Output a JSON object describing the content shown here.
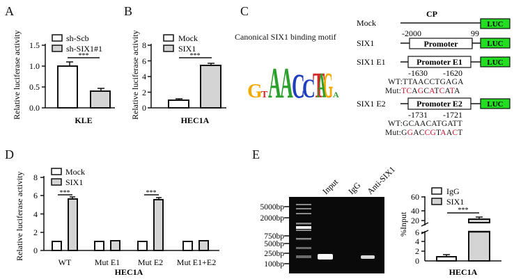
{
  "panels": {
    "A": {
      "letter": "A"
    },
    "B": {
      "letter": "B"
    },
    "C": {
      "letter": "C"
    },
    "D": {
      "letter": "D"
    },
    "E": {
      "letter": "E"
    }
  },
  "colors": {
    "control_fill": "#ffffff",
    "treated_fill": "#d4d4d4",
    "bar_stroke": "#111111",
    "luc_green": "#22dd22",
    "mut_red": "#c8102e",
    "gel_bg": "#0a0a0a"
  },
  "chart_data": [
    {
      "panel": "A",
      "type": "bar",
      "categories": [
        "KLE"
      ],
      "series": [
        {
          "name": "sh-Scb",
          "values": [
            1.0
          ],
          "error": [
            0.1
          ]
        },
        {
          "name": "sh-SIX1#1",
          "values": [
            0.4
          ],
          "error": [
            0.04
          ]
        }
      ],
      "xlabel": "KLE",
      "ylabel": "Relative luciferase activity",
      "ylim": [
        0,
        1.5
      ],
      "yticks": [
        "0.0",
        "0.5",
        "1.0",
        "1.5"
      ],
      "significance": "***",
      "legend": [
        "sh-Scb",
        "sh-SIX1#1"
      ]
    },
    {
      "panel": "B",
      "type": "bar",
      "categories": [
        "HEC1A"
      ],
      "series": [
        {
          "name": "Mock",
          "values": [
            1.0
          ],
          "error": [
            0.1
          ]
        },
        {
          "name": "SIX1",
          "values": [
            5.4
          ],
          "error": [
            0.2
          ]
        }
      ],
      "xlabel": "HEC1A",
      "ylabel": "Relative luciferase activity",
      "ylim": [
        0,
        8
      ],
      "yticks": [
        "0",
        "2",
        "4",
        "6",
        "8"
      ],
      "significance": "***",
      "legend": [
        "Mock",
        "SIX1"
      ]
    },
    {
      "panel": "D",
      "type": "bar",
      "categories": [
        "WT",
        "Mut E1",
        "Mut E2",
        "Mut E1+E2"
      ],
      "series": [
        {
          "name": "Mock",
          "values": [
            1.0,
            1.0,
            1.0,
            1.0
          ],
          "error": [
            0.05,
            0.05,
            0.08,
            0.05
          ]
        },
        {
          "name": "SIX1",
          "values": [
            5.6,
            1.1,
            5.5,
            1.1
          ],
          "error": [
            0.15,
            0.08,
            0.15,
            0.08
          ]
        }
      ],
      "xlabel": "HEC1A",
      "ylabel": "Relative luciferase activity",
      "ylim": [
        0,
        8
      ],
      "yticks": [
        "0",
        "2",
        "4",
        "6",
        "8"
      ],
      "significance": [
        "***",
        "",
        "***",
        ""
      ],
      "legend": [
        "Mock",
        "SIX1"
      ]
    },
    {
      "panel": "E-right",
      "type": "bar",
      "categories": [
        "HEC1A"
      ],
      "series": [
        {
          "name": "IgG",
          "values": [
            1.0
          ],
          "error": [
            0.1
          ]
        },
        {
          "name": "SIX1",
          "values": [
            22
          ],
          "error": [
            2
          ]
        }
      ],
      "xlabel": "HEC1A",
      "ylabel": "%Input",
      "ylim": [
        0,
        60
      ],
      "broken_axis": {
        "lower": [
          0,
          6
        ],
        "upper": [
          20,
          60
        ]
      },
      "yticks": [
        "0",
        "2",
        "4",
        "6",
        "20",
        "40",
        "60"
      ],
      "significance": "***",
      "legend": [
        "IgG",
        "SIX1"
      ]
    }
  ],
  "panelA": {
    "ylabel": "Relative luciferase activity",
    "xlabel": "KLE",
    "legend": [
      "sh-Scb",
      "sh-SIX1#1"
    ],
    "yticks": [
      "0.0",
      "0.5",
      "1.0",
      "1.5"
    ],
    "sig": "***"
  },
  "panelB": {
    "ylabel": "Relative luciferase activity",
    "xlabel": "HEC1A",
    "legend": [
      "Mock",
      "SIX1"
    ],
    "yticks": [
      "0",
      "2",
      "4",
      "6",
      "8"
    ],
    "sig": "***"
  },
  "panelC": {
    "motif_title": "Canonical SIX1 binding motif",
    "motif_letters": [
      "G",
      "T",
      "A",
      "A",
      "C",
      "C",
      "T",
      "G",
      "A",
      "A"
    ],
    "cp_label": "CP",
    "rows": [
      {
        "label": "Mock",
        "box": "",
        "luc": "LUC"
      },
      {
        "label": "SIX1",
        "box": "Promoter",
        "luc": "LUC"
      },
      {
        "label": "SIX1 E1",
        "box": "Promoter E1",
        "luc": "LUC"
      },
      {
        "label": "SIX1 E2",
        "box": "Promoter E2",
        "luc": "LUC"
      }
    ],
    "coord_start": "-2000",
    "coord_end": "99",
    "e1": {
      "pos_left": "-1630",
      "pos_right": "-1620",
      "wt_label": "WT:",
      "wt_seq": "TTAACCTGAGA",
      "mut_label": "Mut:",
      "mut_seq": [
        "T",
        "C",
        "A",
        "G",
        "C",
        "A",
        "T",
        "C",
        "A",
        "T",
        "A"
      ],
      "mut_red": [
        true,
        true,
        false,
        true,
        false,
        true,
        false,
        true,
        false,
        true,
        false
      ]
    },
    "e2": {
      "pos_left": "-1731",
      "pos_right": "-1721",
      "wt_label": "WT:",
      "wt_seq": "GCAACATGATT",
      "mut_label": "Mut:",
      "mut_seq": [
        "G",
        "G",
        "A",
        "C",
        "C",
        "G",
        "T",
        "A",
        "A",
        "C",
        "T"
      ],
      "mut_red": [
        false,
        true,
        false,
        false,
        true,
        true,
        false,
        true,
        false,
        true,
        false
      ]
    }
  },
  "panelD": {
    "ylabel": "Relative luciferase activity",
    "xlabel": "HEC1A",
    "legend": [
      "Mock",
      "SIX1"
    ],
    "yticks": [
      "0",
      "2",
      "4",
      "6",
      "8"
    ],
    "categories": [
      "WT",
      "Mut E1",
      "Mut E2",
      "Mut E1+E2"
    ],
    "sig": "***"
  },
  "panelE": {
    "lanes": [
      "Input",
      "IgG",
      "Anti-SIX1"
    ],
    "markers": [
      "5000bp",
      "2000bp",
      "750bp",
      "500bp",
      "250bp",
      "100bp"
    ],
    "ylabel": "%Input",
    "xlabel": "HEC1A",
    "legend": [
      "IgG",
      "SIX1"
    ],
    "yticks_upper": [
      "20",
      "40",
      "60"
    ],
    "yticks_lower": [
      "0",
      "2",
      "4",
      "6"
    ],
    "sig": "***"
  }
}
